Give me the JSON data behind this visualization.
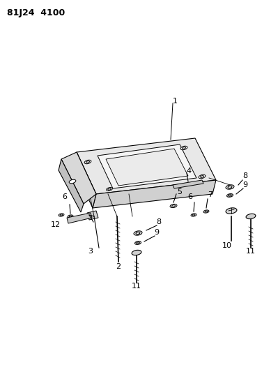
{
  "title": "81J24 4100",
  "bg_color": "#ffffff",
  "line_color": "#000000",
  "fig_width": 3.99,
  "fig_height": 5.33,
  "dpi": 100
}
